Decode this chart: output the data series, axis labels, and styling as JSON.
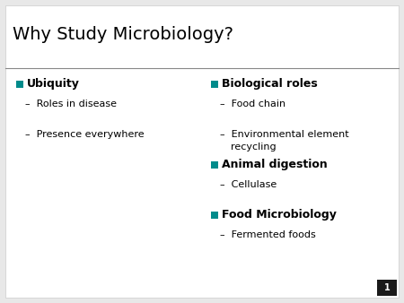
{
  "title": "Why Study Microbiology?",
  "slide_bg_color": "#e8e8e8",
  "slide_inner_color": "#ffffff",
  "title_color": "#000000",
  "bullet_color": "#008B8B",
  "text_color": "#000000",
  "slide_number": "1",
  "title_fontsize": 14,
  "main_fontsize": 9,
  "sub_fontsize": 8,
  "left_column": {
    "bullets": [
      {
        "type": "main",
        "text": "Ubiquity"
      },
      {
        "type": "sub",
        "text": "Roles in disease",
        "extra_gap": false
      },
      {
        "type": "gap"
      },
      {
        "type": "sub",
        "text": "Presence everywhere",
        "extra_gap": false
      }
    ]
  },
  "right_column": {
    "bullets": [
      {
        "type": "main",
        "text": "Biological roles"
      },
      {
        "type": "sub",
        "text": "Food chain",
        "extra_gap": false
      },
      {
        "type": "gap"
      },
      {
        "type": "sub2",
        "text": "Environmental element\nrecycling"
      },
      {
        "type": "main",
        "text": "Animal digestion"
      },
      {
        "type": "sub",
        "text": "Cellulase",
        "extra_gap": false
      },
      {
        "type": "gap"
      },
      {
        "type": "main",
        "text": "Food Microbiology"
      },
      {
        "type": "sub",
        "text": "Fermented foods",
        "extra_gap": false
      }
    ]
  }
}
